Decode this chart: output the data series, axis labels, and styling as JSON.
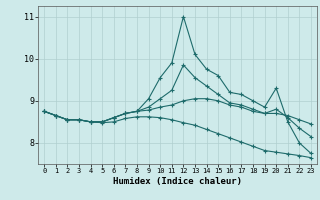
{
  "xlabel": "Humidex (Indice chaleur)",
  "ylabel": "",
  "bg_color": "#ceeaea",
  "line_color": "#1e6b6b",
  "grid_color": "#b0cfcf",
  "xlim": [
    -0.5,
    23.5
  ],
  "ylim": [
    7.5,
    11.25
  ],
  "yticks": [
    8,
    9,
    10,
    11
  ],
  "xticks": [
    0,
    1,
    2,
    3,
    4,
    5,
    6,
    7,
    8,
    9,
    10,
    11,
    12,
    13,
    14,
    15,
    16,
    17,
    18,
    19,
    20,
    21,
    22,
    23
  ],
  "series": [
    [
      8.75,
      8.65,
      8.55,
      8.55,
      8.5,
      8.5,
      8.6,
      8.7,
      8.75,
      9.05,
      9.55,
      9.9,
      11.0,
      10.1,
      9.75,
      9.6,
      9.2,
      9.15,
      9.0,
      8.85,
      9.3,
      8.5,
      8.0,
      7.75
    ],
    [
      8.75,
      8.65,
      8.55,
      8.55,
      8.5,
      8.5,
      8.6,
      8.7,
      8.75,
      8.85,
      9.05,
      9.25,
      9.85,
      9.55,
      9.35,
      9.15,
      8.95,
      8.9,
      8.8,
      8.7,
      8.8,
      8.6,
      8.35,
      8.15
    ],
    [
      8.75,
      8.65,
      8.55,
      8.55,
      8.5,
      8.5,
      8.6,
      8.7,
      8.75,
      8.78,
      8.85,
      8.9,
      9.0,
      9.05,
      9.05,
      9.0,
      8.9,
      8.85,
      8.75,
      8.7,
      8.7,
      8.65,
      8.55,
      8.45
    ],
    [
      8.75,
      8.65,
      8.55,
      8.55,
      8.5,
      8.48,
      8.5,
      8.58,
      8.62,
      8.62,
      8.6,
      8.55,
      8.48,
      8.42,
      8.32,
      8.22,
      8.12,
      8.02,
      7.92,
      7.82,
      7.78,
      7.74,
      7.7,
      7.65
    ]
  ]
}
